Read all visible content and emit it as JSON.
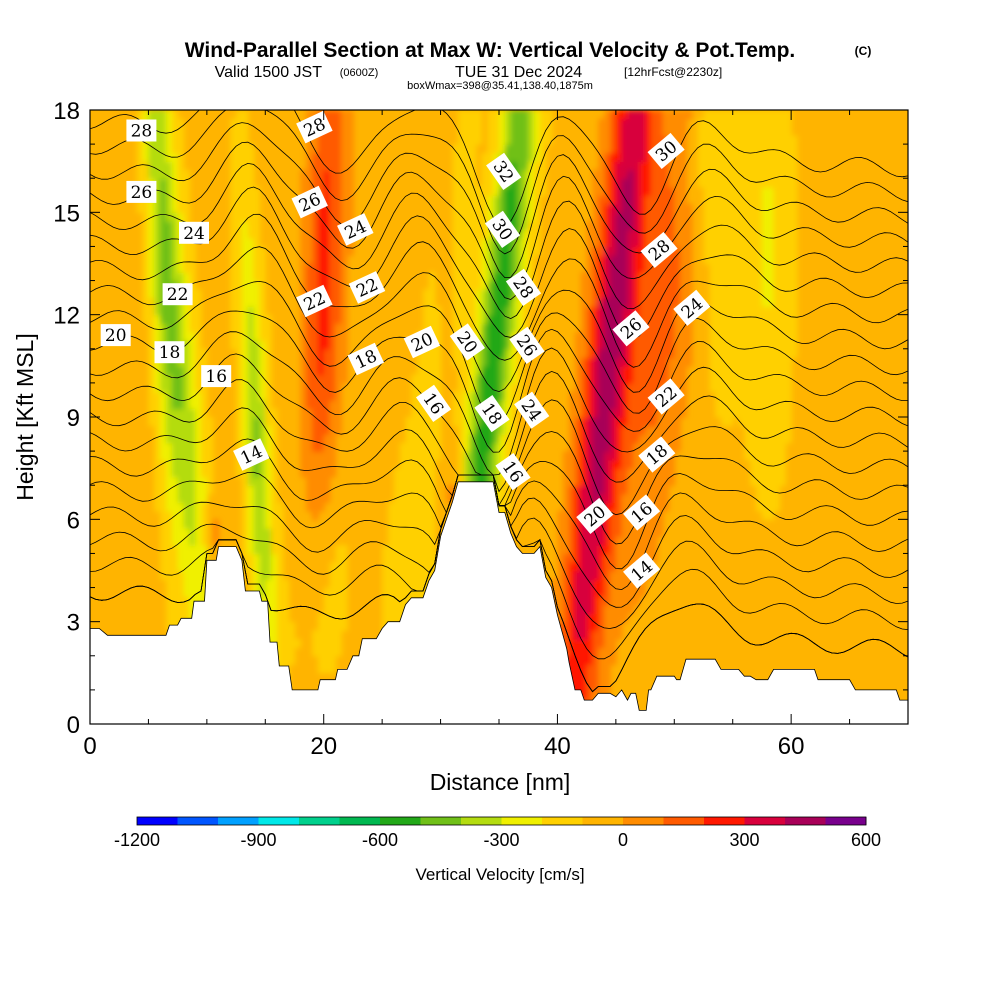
{
  "title": {
    "main": "Wind-Parallel Section at Max W: Vertical Velocity & Pot.Temp.",
    "copyright": "(C)",
    "valid_prefix": "Valid 1500 JST",
    "valid_utc": "(0600Z)",
    "valid_date": "TUE 31 Dec 2024",
    "forecast": "[12hrFcst@2230z]",
    "boxinfo": "boxWmax=398@35.41,138.40,1875m"
  },
  "chart_data": {
    "type": "heatmap",
    "xlabel": "Distance [nm]",
    "ylabel": "Height [Kft MSL]",
    "xlim": [
      0,
      70
    ],
    "ylim": [
      0,
      18
    ],
    "x_ticks": [
      0,
      20,
      40,
      60
    ],
    "y_ticks": [
      0,
      3,
      6,
      9,
      12,
      15,
      18
    ],
    "colorbar": {
      "title": "Vertical Velocity [cm/s]",
      "min": -1200,
      "max": 600,
      "step": 100,
      "tick_labels": [
        -1200,
        -900,
        -600,
        -300,
        0,
        300,
        600
      ],
      "colors": [
        "#0000ff",
        "#0055ff",
        "#00a0ff",
        "#00e8e8",
        "#00d08c",
        "#00b850",
        "#22a818",
        "#70c018",
        "#b4dc10",
        "#f0f000",
        "#ffd000",
        "#ffb400",
        "#ff8c00",
        "#ff5a00",
        "#ff1800",
        "#d8003c",
        "#a80058",
        "#78008c"
      ]
    },
    "terrain": [
      [
        0,
        2.8
      ],
      [
        0.8,
        2.8
      ],
      [
        1.5,
        2.6
      ],
      [
        3,
        2.6
      ],
      [
        4,
        2.6
      ],
      [
        5,
        2.6
      ],
      [
        6.5,
        2.6
      ],
      [
        6.8,
        2.9
      ],
      [
        7.5,
        2.9
      ],
      [
        7.8,
        3.1
      ],
      [
        8.7,
        3.1
      ],
      [
        8.9,
        3.6
      ],
      [
        9.8,
        3.6
      ],
      [
        10,
        4.8
      ],
      [
        10.8,
        4.8
      ],
      [
        11,
        5.2
      ],
      [
        12.5,
        5.2
      ],
      [
        13,
        4.8
      ],
      [
        13.3,
        3.9
      ],
      [
        14.5,
        3.9
      ],
      [
        14.7,
        3.6
      ],
      [
        15.2,
        3.6
      ],
      [
        15.4,
        2.4
      ],
      [
        16,
        2.4
      ],
      [
        16.2,
        1.7
      ],
      [
        17,
        1.7
      ],
      [
        17.3,
        1
      ],
      [
        19.5,
        1
      ],
      [
        19.7,
        1.3
      ],
      [
        21,
        1.3
      ],
      [
        21.2,
        1.6
      ],
      [
        22,
        1.6
      ],
      [
        22.5,
        2
      ],
      [
        23,
        2
      ],
      [
        23.3,
        2.5
      ],
      [
        24.5,
        2.5
      ],
      [
        25,
        2.8
      ],
      [
        25.5,
        3
      ],
      [
        26.5,
        3
      ],
      [
        27,
        3.5
      ],
      [
        27.5,
        3.7
      ],
      [
        28.5,
        3.7
      ],
      [
        29,
        4.2
      ],
      [
        29.5,
        4.5
      ],
      [
        30,
        5.5
      ],
      [
        30.5,
        6
      ],
      [
        31,
        6.5
      ],
      [
        31.5,
        7.1
      ],
      [
        34.5,
        7.1
      ],
      [
        35,
        6.2
      ],
      [
        35.5,
        6.2
      ],
      [
        36,
        5.6
      ],
      [
        36.5,
        5.2
      ],
      [
        37,
        5
      ],
      [
        38,
        5
      ],
      [
        38.5,
        5.2
      ],
      [
        39,
        4.3
      ],
      [
        39.5,
        4
      ],
      [
        40,
        3.2
      ],
      [
        40.8,
        2.2
      ],
      [
        41,
        1.8
      ],
      [
        41.5,
        1
      ],
      [
        42,
        1
      ],
      [
        42.3,
        0.7
      ],
      [
        43,
        0.7
      ],
      [
        43.5,
        0.9
      ],
      [
        44.5,
        0.9
      ],
      [
        45,
        0.8
      ],
      [
        45.5,
        1
      ],
      [
        46,
        0.7
      ],
      [
        46.3,
        0.9
      ],
      [
        46.7,
        0.9
      ],
      [
        47,
        0.4
      ],
      [
        47.6,
        0.4
      ],
      [
        47.8,
        1
      ],
      [
        48,
        1
      ],
      [
        48.5,
        1.4
      ],
      [
        50,
        1.4
      ],
      [
        50.2,
        1.3
      ],
      [
        50.5,
        1.3
      ],
      [
        51,
        1.9
      ],
      [
        53.5,
        1.9
      ],
      [
        54,
        1.6
      ],
      [
        55.5,
        1.6
      ],
      [
        56,
        1.4
      ],
      [
        56.5,
        1.4
      ],
      [
        57,
        1.3
      ],
      [
        58,
        1.3
      ],
      [
        58.5,
        1.6
      ],
      [
        62,
        1.6
      ],
      [
        62.3,
        1.3
      ],
      [
        65,
        1.3
      ],
      [
        65.5,
        1
      ],
      [
        69,
        1
      ],
      [
        69.3,
        0.7
      ],
      [
        70,
        0.7
      ]
    ],
    "isentropes": [
      {
        "theta": 14,
        "label_points": [
          [
            13.8,
            7.9
          ],
          [
            47.2,
            4.5
          ]
        ]
      },
      {
        "theta": 16,
        "label_points": [
          [
            10.8,
            10.2
          ],
          [
            29.4,
            9.4
          ],
          [
            36.2,
            7.4
          ],
          [
            47.2,
            6.2
          ]
        ]
      },
      {
        "theta": 18,
        "label_points": [
          [
            6.8,
            10.9
          ],
          [
            23.6,
            10.7
          ],
          [
            34.4,
            9.1
          ],
          [
            48.5,
            7.9
          ]
        ]
      },
      {
        "theta": 20,
        "label_points": [
          [
            2.2,
            11.4
          ],
          [
            28.4,
            11.2
          ],
          [
            32.3,
            11.2
          ],
          [
            43.2,
            6.1
          ]
        ]
      },
      {
        "theta": 22,
        "label_points": [
          [
            7.5,
            12.6
          ],
          [
            19.2,
            12.4
          ],
          [
            23.7,
            12.8
          ],
          [
            49.3,
            9.6
          ]
        ]
      },
      {
        "theta": 24,
        "label_points": [
          [
            8.9,
            14.4
          ],
          [
            22.7,
            14.5
          ],
          [
            37.8,
            9.2
          ],
          [
            51.5,
            12.2
          ]
        ]
      },
      {
        "theta": 26,
        "label_points": [
          [
            4.4,
            15.6
          ],
          [
            18.8,
            15.3
          ],
          [
            37.4,
            11.1
          ],
          [
            46.3,
            11.6
          ]
        ]
      },
      {
        "theta": 28,
        "label_points": [
          [
            4.4,
            17.4
          ],
          [
            19.2,
            17.5
          ],
          [
            37.1,
            12.8
          ],
          [
            48.7,
            13.9
          ]
        ]
      },
      {
        "theta": 30,
        "label_points": [
          [
            35.3,
            14.5
          ],
          [
            49.3,
            16.8
          ]
        ]
      },
      {
        "theta": 32,
        "label_points": [
          [
            35.4,
            16.2
          ]
        ]
      }
    ]
  }
}
